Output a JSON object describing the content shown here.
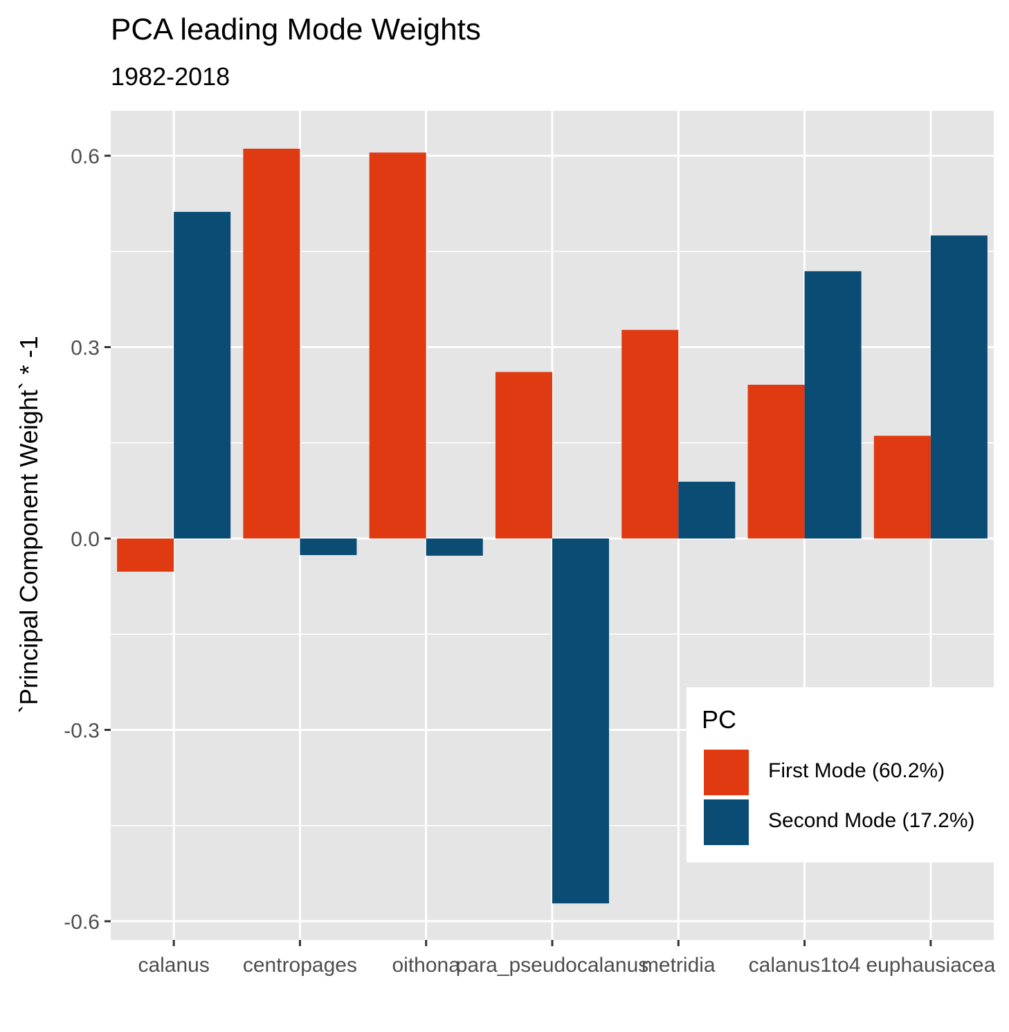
{
  "title": "PCA leading Mode Weights",
  "subtitle": "1982-2018",
  "legend_title": "PC",
  "colors": {
    "panel": "#e5e5e5",
    "grid": "#ffffff",
    "first": "#e03a12",
    "second": "#0b4c75"
  },
  "chart_data": {
    "type": "bar",
    "title": "PCA leading Mode Weights",
    "subtitle": "1982-2018",
    "xlabel": "",
    "ylabel": "`Principal Component Weight` * -1",
    "ylim": [
      -0.67,
      0.67
    ],
    "yticks": [
      -0.6,
      -0.3,
      0.0,
      0.3,
      0.6
    ],
    "ytick_labels": [
      "-0.6",
      "-0.3",
      "0.0",
      "0.3",
      "0.6"
    ],
    "categories": [
      "calanus",
      "centropages",
      "oithona",
      "para_pseudocalanus",
      "metridia",
      "calanus1to4",
      "euphausiacea"
    ],
    "series": [
      {
        "name": "First Mode (60.2%)",
        "values": [
          -0.052,
          0.611,
          0.605,
          0.261,
          0.327,
          0.241,
          0.161
        ]
      },
      {
        "name": "Second Mode (17.2%)",
        "values": [
          0.512,
          -0.026,
          -0.027,
          -0.572,
          0.089,
          0.419,
          0.475
        ]
      }
    ],
    "grid": true,
    "legend_position": "bottom-right"
  }
}
